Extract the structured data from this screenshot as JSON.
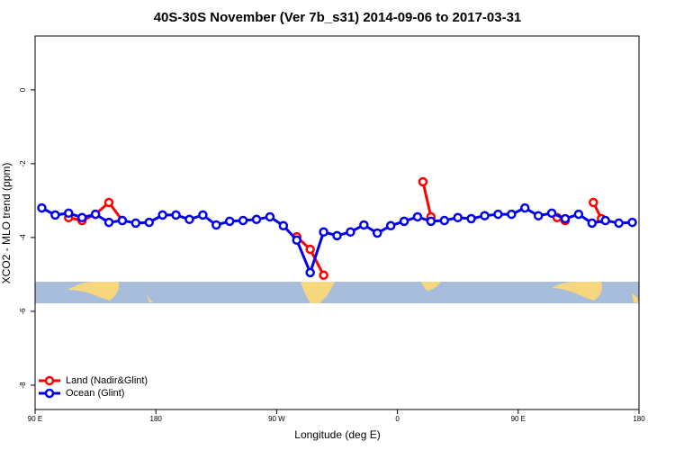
{
  "chart_data": {
    "type": "line",
    "title": "40S-30S November (Ver 7b_s31)   2014-09-06 to 2017-03-31",
    "xlabel": "Longitude (deg E)",
    "ylabel": "XCO2 - MLO trend (ppm)",
    "xlim": [
      90,
      540
    ],
    "xticks": [
      {
        "value": 90,
        "label": "90 E"
      },
      {
        "value": 180,
        "label": "180"
      },
      {
        "value": 270,
        "label": "90 W"
      },
      {
        "value": 360,
        "label": "0"
      },
      {
        "value": 450,
        "label": "90 E"
      },
      {
        "value": 540,
        "label": "180"
      }
    ],
    "ylim": [
      -8.66,
      1.46
    ],
    "yticks": [
      0,
      -2,
      -4,
      -6,
      -8
    ],
    "legend": "bottom-left",
    "series": [
      {
        "name": "Land (Nadir&Glint)",
        "color": "#ff0000",
        "x": [
          115,
          125,
          135,
          145,
          155,
          null,
          285,
          295,
          305,
          null,
          379,
          385,
          null,
          479,
          485,
          null,
          506,
          512
        ],
        "values": [
          -3.46,
          -3.54,
          -3.37,
          -3.05,
          -3.54,
          null,
          -3.98,
          -4.32,
          -5.02,
          null,
          -2.49,
          -3.44,
          null,
          -3.46,
          -3.54,
          null,
          -3.05,
          -3.49
        ]
      },
      {
        "name": "Ocean (Glint)",
        "color": "#0000ee",
        "x": [
          95,
          105,
          115,
          125,
          135,
          145,
          155,
          165,
          175,
          185,
          195,
          205,
          215,
          225,
          235,
          245,
          255,
          265,
          275,
          285,
          295,
          305,
          315,
          325,
          335,
          345,
          355,
          365,
          375,
          385,
          395,
          405,
          415,
          425,
          435,
          445,
          455,
          465,
          475,
          485,
          495,
          505,
          515,
          525,
          535
        ],
        "values": [
          -3.2,
          -3.39,
          -3.34,
          -3.46,
          -3.37,
          -3.59,
          -3.54,
          -3.61,
          -3.59,
          -3.39,
          -3.39,
          -3.51,
          -3.39,
          -3.66,
          -3.56,
          -3.54,
          -3.51,
          -3.44,
          -3.68,
          -4.07,
          -4.95,
          -3.85,
          -3.95,
          -3.85,
          -3.66,
          -3.88,
          -3.68,
          -3.56,
          -3.44,
          -3.56,
          -3.54,
          -3.46,
          -3.49,
          -3.41,
          -3.37,
          -3.37,
          -3.2,
          -3.41,
          -3.34,
          -3.49,
          -3.37,
          -3.61,
          -3.54,
          -3.61,
          -3.59
        ]
      }
    ]
  }
}
